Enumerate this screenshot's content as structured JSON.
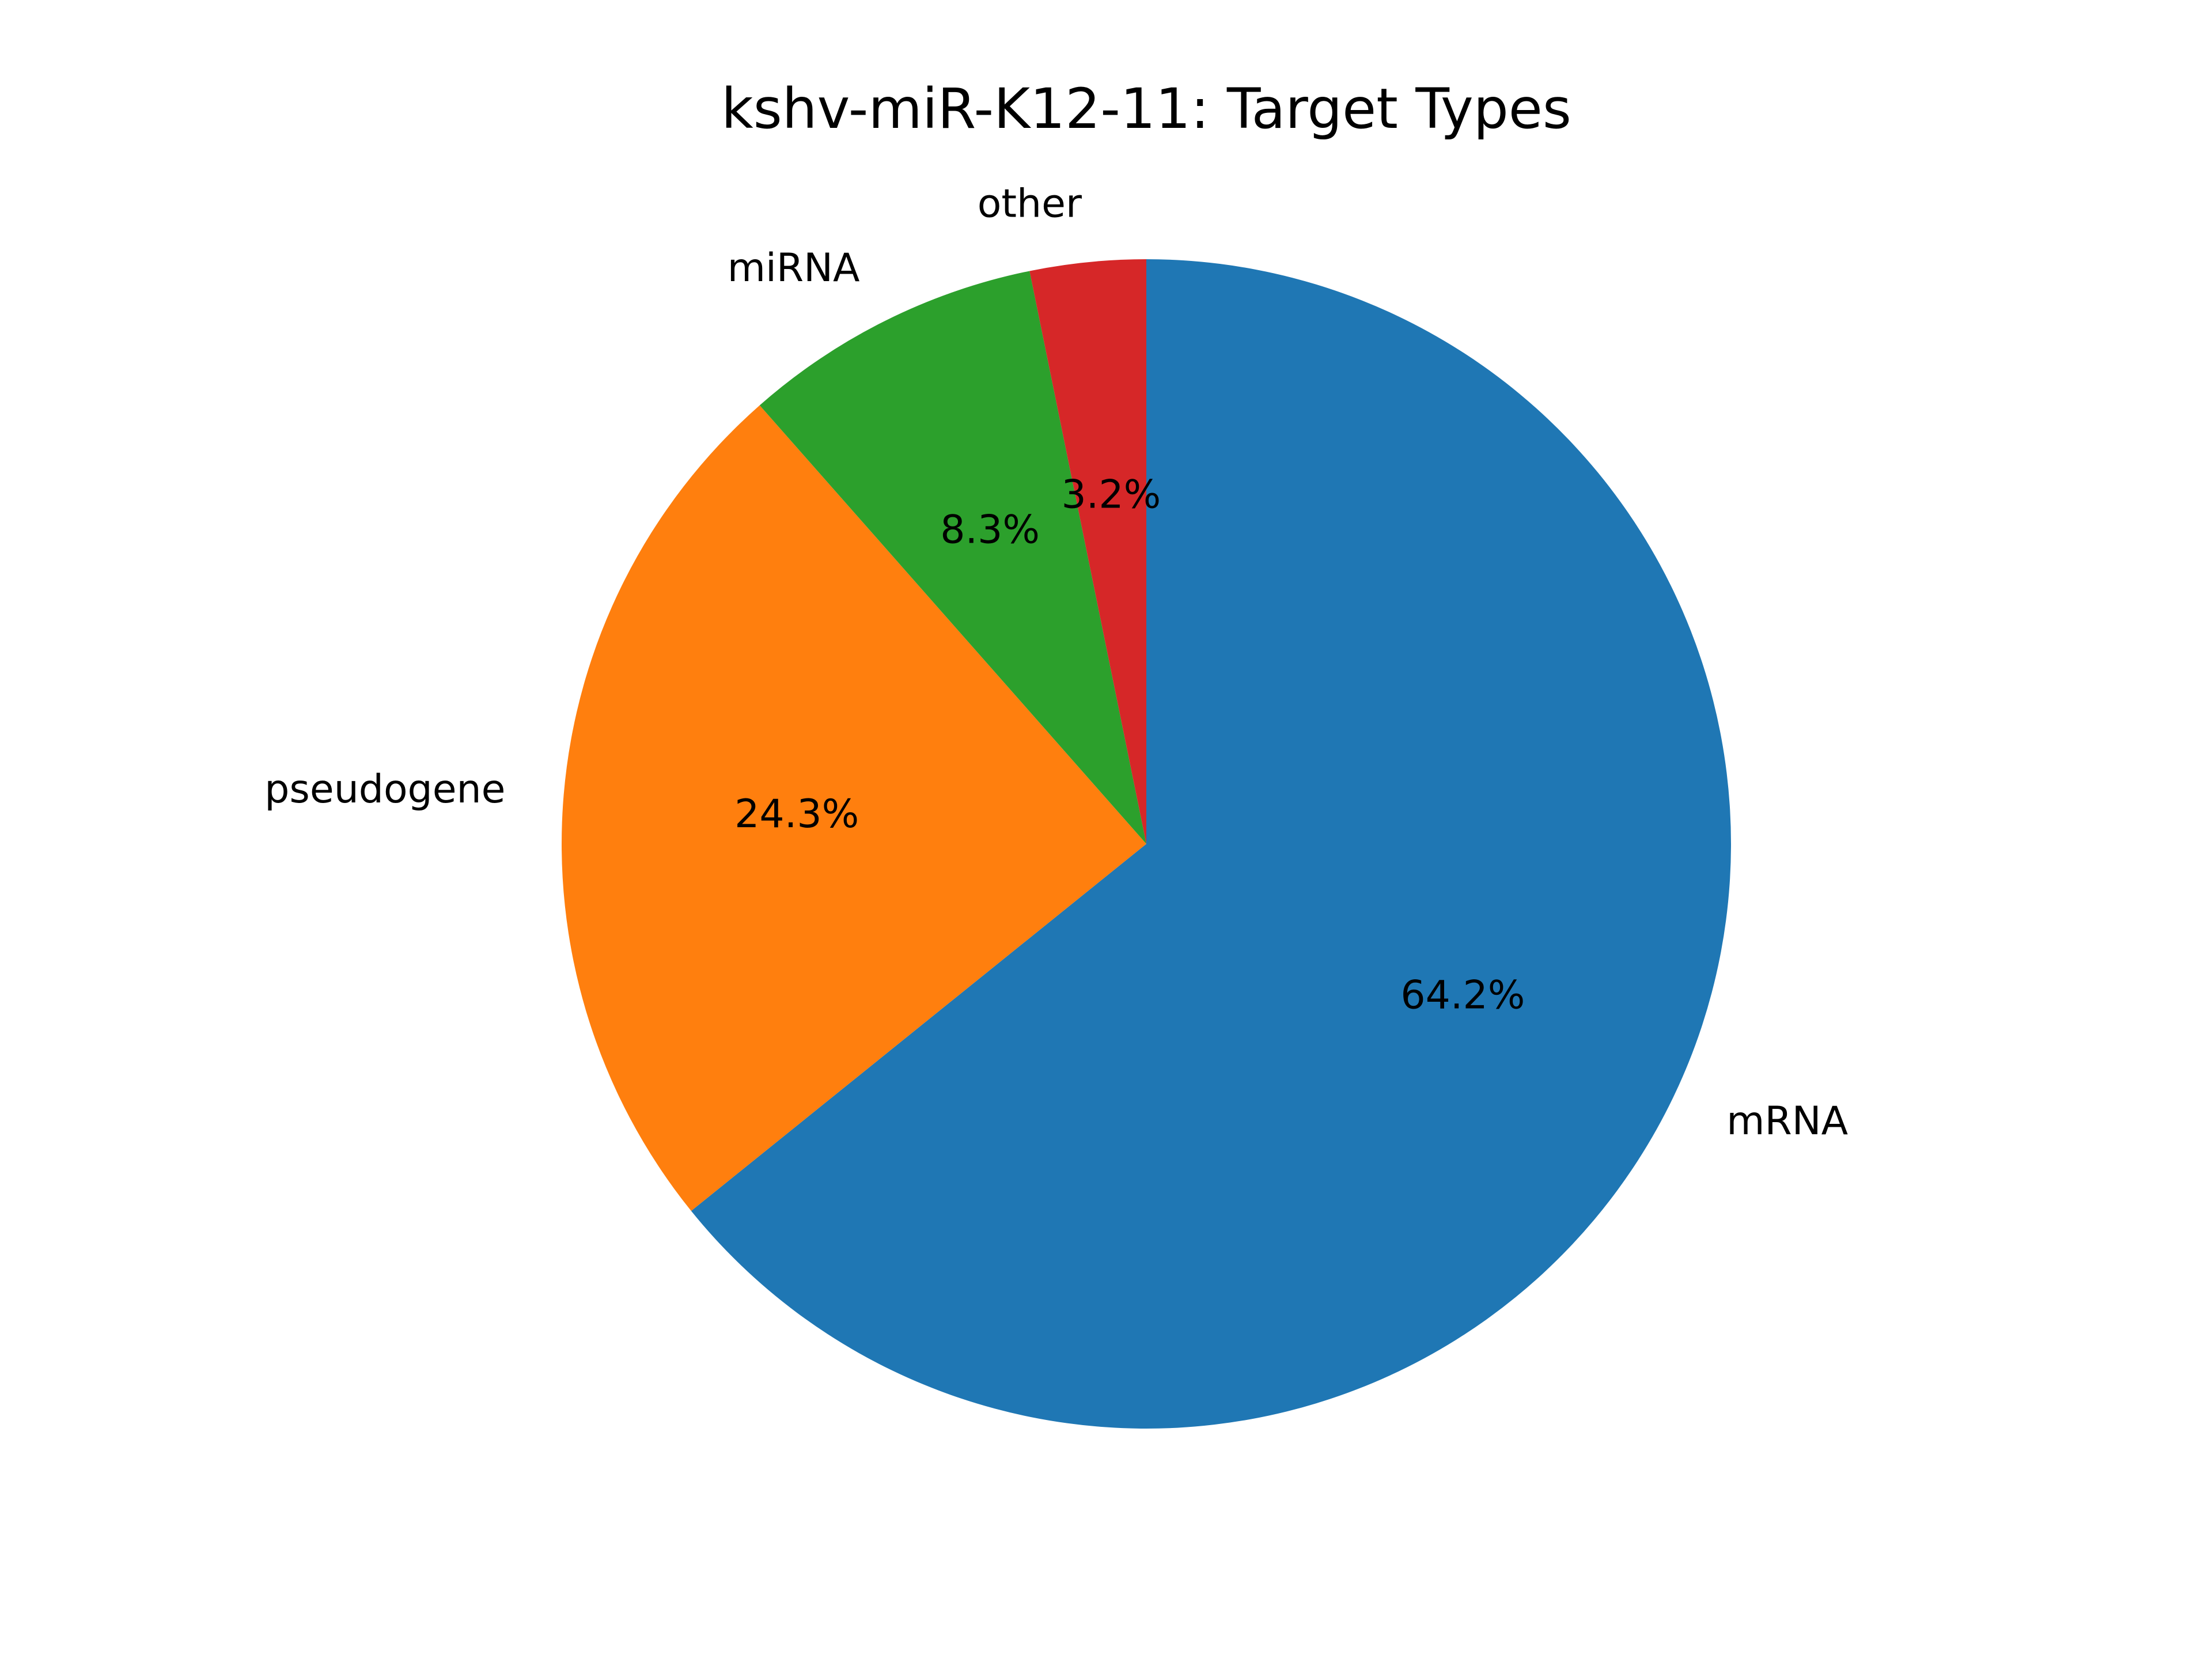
{
  "chart_data": {
    "type": "pie",
    "title": "kshv-miR-K12-11: Target Types",
    "start_angle_deg": 90,
    "direction": "clockwise",
    "slices": [
      {
        "label": "mRNA",
        "value": 64.2,
        "pct_label": "64.2%",
        "color": "#1f77b4"
      },
      {
        "label": "pseudogene",
        "value": 24.3,
        "pct_label": "24.3%",
        "color": "#ff7f0e"
      },
      {
        "label": "miRNA",
        "value": 8.3,
        "pct_label": "8.3%",
        "color": "#2ca02c"
      },
      {
        "label": "other",
        "value": 3.2,
        "pct_label": "3.2%",
        "color": "#d62728"
      }
    ]
  }
}
